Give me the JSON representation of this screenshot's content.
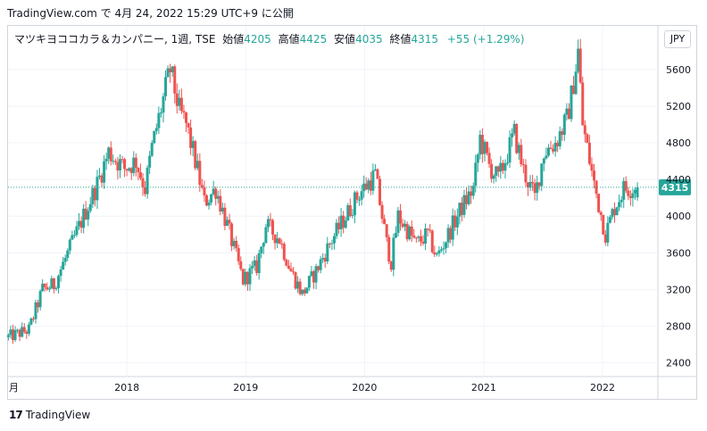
{
  "header": {
    "text": "TradingView.com で 4月 24, 2022 15:29 UTC+9 に公開"
  },
  "legend": {
    "symbol": "マツキヨココカラ＆カンパニー, 1週, TSE",
    "open_label": "始値",
    "open_value": "4205",
    "high_label": "高値",
    "high_value": "4425",
    "low_label": "安値",
    "low_value": "4035",
    "close_label": "終値",
    "close_value": "4315",
    "change": "+55 (+1.29%)"
  },
  "currency": "JPY",
  "footer": {
    "brand": "TradingView",
    "logo_glyph": "17"
  },
  "colors": {
    "up": "#26a69a",
    "down": "#ef5350",
    "grid": "#f0f3fa",
    "price_line": "#26a69a"
  },
  "chart_data": {
    "type": "candlestick",
    "interval": "1週",
    "last_price": "4315",
    "x_tick_labels": [
      "月",
      "2018",
      "2019",
      "2020",
      "2021",
      "2022"
    ],
    "y_tick_labels": [
      "2400",
      "2800",
      "3200",
      "3600",
      "4000",
      "4400",
      "4800",
      "5200",
      "5600"
    ],
    "ylim": [
      2250,
      5920
    ],
    "xlim": [
      "2017-01-01",
      "2022-06-20"
    ],
    "grid": true,
    "anchors": [
      [
        "2017-01-02",
        2680
      ],
      [
        "2017-03-06",
        2760
      ],
      [
        "2017-04-17",
        3200
      ],
      [
        "2017-05-22",
        3250
      ],
      [
        "2017-07-10",
        3650
      ],
      [
        "2017-08-21",
        4000
      ],
      [
        "2017-10-02",
        4350
      ],
      [
        "2017-11-06",
        4700
      ],
      [
        "2017-12-25",
        4520
      ],
      [
        "2018-01-29",
        4600
      ],
      [
        "2018-02-26",
        4300
      ],
      [
        "2018-03-19",
        4750
      ],
      [
        "2018-05-14",
        5600
      ],
      [
        "2018-06-11",
        5150
      ],
      [
        "2018-07-02",
        5000
      ],
      [
        "2018-08-06",
        4500
      ],
      [
        "2018-08-27",
        4150
      ],
      [
        "2018-10-01",
        4300
      ],
      [
        "2018-11-05",
        3900
      ],
      [
        "2018-12-24",
        3300
      ],
      [
        "2019-02-04",
        3450
      ],
      [
        "2019-03-04",
        3900
      ],
      [
        "2019-04-15",
        3750
      ],
      [
        "2019-05-20",
        3400
      ],
      [
        "2019-06-24",
        3150
      ],
      [
        "2019-08-05",
        3400
      ],
      [
        "2019-09-16",
        3700
      ],
      [
        "2019-11-04",
        4000
      ],
      [
        "2019-12-16",
        4250
      ],
      [
        "2020-02-03",
        4450
      ],
      [
        "2020-03-09",
        3700
      ],
      [
        "2020-03-23",
        3500
      ],
      [
        "2020-04-13",
        4000
      ],
      [
        "2020-06-08",
        3700
      ],
      [
        "2020-07-13",
        3800
      ],
      [
        "2020-08-10",
        3550
      ],
      [
        "2020-09-21",
        3850
      ],
      [
        "2020-10-26",
        4100
      ],
      [
        "2020-11-30",
        4300
      ],
      [
        "2020-12-21",
        4850
      ],
      [
        "2021-01-18",
        4550
      ],
      [
        "2021-02-15",
        4400
      ],
      [
        "2021-04-05",
        4900
      ],
      [
        "2021-05-03",
        4500
      ],
      [
        "2021-06-07",
        4200
      ],
      [
        "2021-07-05",
        4700
      ],
      [
        "2021-08-09",
        4800
      ],
      [
        "2021-09-13",
        5050
      ],
      [
        "2021-09-27",
        5300
      ],
      [
        "2021-10-18",
        5800
      ],
      [
        "2021-11-01",
        5000
      ],
      [
        "2021-12-06",
        4350
      ],
      [
        "2022-01-10",
        3800
      ],
      [
        "2022-02-07",
        4100
      ],
      [
        "2022-03-07",
        4300
      ],
      [
        "2022-04-18",
        4315
      ]
    ]
  }
}
